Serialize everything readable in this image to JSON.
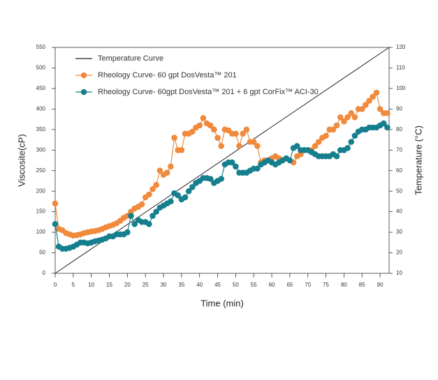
{
  "chart_data": {
    "type": "line",
    "x_label": "Time (min)",
    "y_label": "Viscosite(cP)",
    "y2_label": "Temperature (°C)",
    "x": [
      0,
      1,
      2,
      3,
      4,
      5,
      6,
      7,
      8,
      9,
      10,
      11,
      12,
      13,
      14,
      15,
      16,
      17,
      18,
      19,
      20,
      21,
      22,
      23,
      24,
      25,
      26,
      27,
      28,
      29,
      30,
      31,
      32,
      33,
      34,
      35,
      36,
      37,
      38,
      39,
      40,
      41,
      42,
      43,
      44,
      45,
      46,
      47,
      48,
      49,
      50,
      51,
      52,
      53,
      54,
      55,
      56,
      57,
      58,
      59,
      60,
      61,
      62,
      63,
      64,
      65,
      66,
      67,
      68,
      69,
      70,
      71,
      72,
      73,
      74,
      75,
      76,
      77,
      78,
      79,
      80,
      81,
      82,
      83,
      84,
      85,
      86,
      87,
      88,
      89,
      90,
      91,
      92
    ],
    "xlim": [
      0,
      92.5
    ],
    "xticks": [
      0,
      5,
      10,
      15,
      20,
      25,
      30,
      35,
      40,
      45,
      50,
      55,
      60,
      65,
      70,
      75,
      80,
      85,
      90
    ],
    "ylim": [
      0,
      550
    ],
    "yticks": [
      0,
      50,
      100,
      150,
      200,
      250,
      300,
      350,
      400,
      450,
      500,
      550
    ],
    "y2lim": [
      10,
      120
    ],
    "y2ticks": [
      10,
      20,
      30,
      40,
      50,
      60,
      70,
      80,
      90,
      100,
      110,
      120
    ],
    "legend": "upper left",
    "series": [
      {
        "name": "Temperature Curve",
        "color": "#222222",
        "axis": "y2",
        "x": [
          0,
          92.5
        ],
        "values": [
          10,
          120
        ]
      },
      {
        "name": "Rheology Curve- 60 gpt DosVesta™ 201",
        "color": "#f08a3c",
        "values": [
          170,
          108,
          105,
          98,
          95,
          92,
          93,
          95,
          98,
          100,
          102,
          103,
          105,
          108,
          112,
          115,
          118,
          122,
          128,
          135,
          140,
          150,
          158,
          162,
          168,
          185,
          192,
          205,
          215,
          250,
          240,
          245,
          260,
          330,
          300,
          300,
          340,
          340,
          345,
          355,
          360,
          378,
          365,
          360,
          350,
          330,
          310,
          350,
          348,
          340,
          340,
          310,
          340,
          350,
          320,
          320,
          310,
          270,
          275,
          275,
          280,
          285,
          280,
          275,
          280,
          275,
          270,
          285,
          290,
          300,
          300,
          300,
          310,
          320,
          330,
          335,
          350,
          350,
          360,
          380,
          370,
          380,
          390,
          380,
          400,
          400,
          410,
          420,
          430,
          440,
          400,
          390,
          390
        ]
      },
      {
        "name": "Rheology Curve- 60gpt DosVesta™ 201 + 6 gpt CorFix™ ACI-30",
        "color": "#157f8e",
        "values": [
          120,
          65,
          60,
          60,
          62,
          65,
          70,
          75,
          75,
          73,
          75,
          78,
          80,
          82,
          85,
          90,
          90,
          95,
          95,
          95,
          100,
          140,
          120,
          130,
          125,
          125,
          120,
          140,
          150,
          160,
          165,
          170,
          175,
          195,
          190,
          180,
          185,
          200,
          210,
          220,
          225,
          232,
          232,
          230,
          220,
          225,
          230,
          265,
          270,
          270,
          260,
          245,
          245,
          245,
          250,
          255,
          255,
          265,
          270,
          275,
          270,
          265,
          270,
          275,
          280,
          275,
          305,
          310,
          300,
          300,
          300,
          295,
          290,
          285,
          285,
          285,
          285,
          290,
          285,
          300,
          300,
          305,
          320,
          335,
          345,
          350,
          350,
          355,
          355,
          355,
          360,
          365,
          355
        ]
      }
    ]
  }
}
